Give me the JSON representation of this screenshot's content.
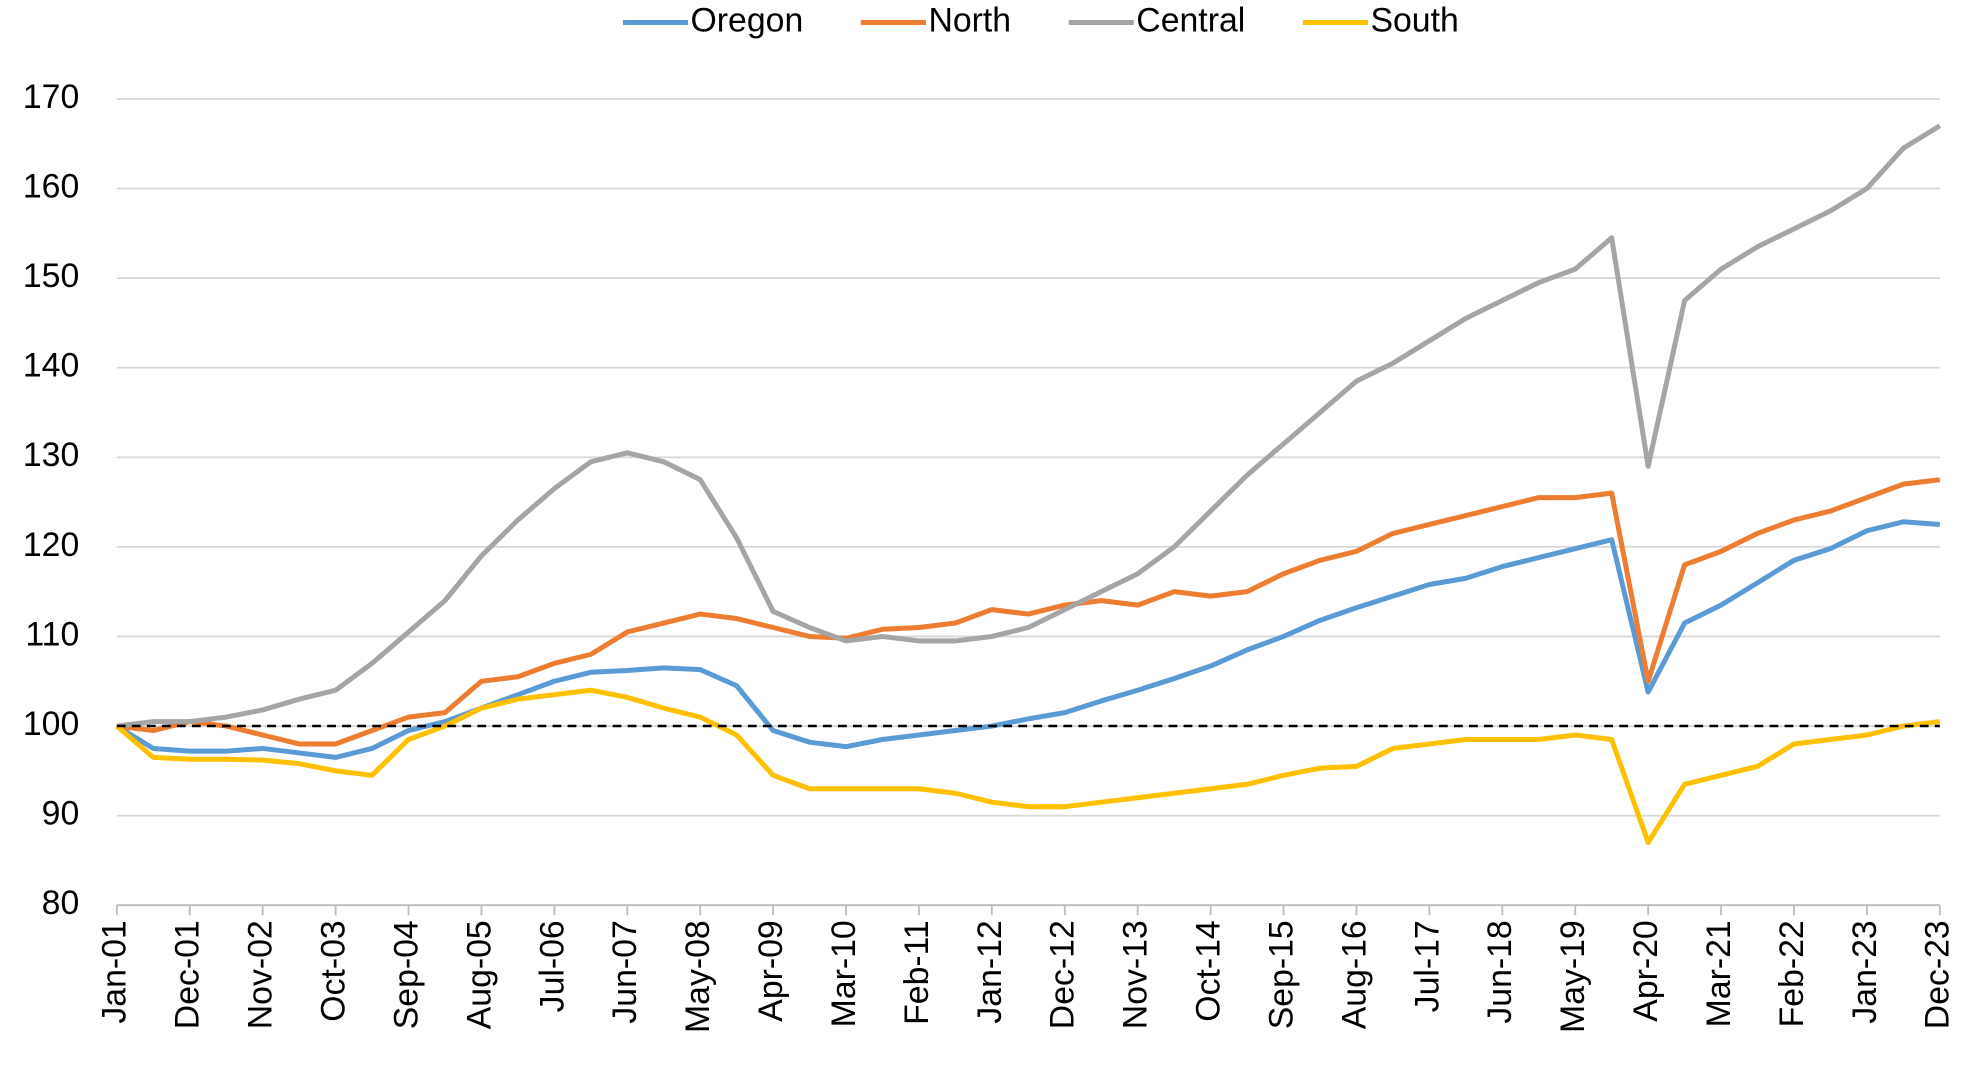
{
  "chart_data": {
    "type": "line",
    "categories": [
      "Jan-01",
      null,
      "Dec-01",
      null,
      "Nov-02",
      null,
      "Oct-03",
      null,
      "Sep-04",
      null,
      "Aug-05",
      null,
      "Jul-06",
      null,
      "Jun-07",
      null,
      "May-08",
      null,
      "Apr-09",
      null,
      "Mar-10",
      null,
      "Feb-11",
      null,
      "Jan-12",
      null,
      "Dec-12",
      null,
      "Nov-13",
      null,
      "Oct-14",
      null,
      "Sep-15",
      null,
      "Aug-16",
      null,
      "Jul-17",
      null,
      "Jun-18",
      null,
      "May-19",
      null,
      "Apr-20",
      null,
      "Mar-21",
      null,
      "Feb-22",
      null,
      "Jan-23",
      null,
      "Dec-23"
    ],
    "series": [
      {
        "name": "Oregon",
        "color": "#5b9bd5",
        "values": [
          100,
          97.5,
          97.2,
          97.2,
          97.5,
          97,
          96.5,
          97.5,
          99.5,
          100.5,
          102,
          103.5,
          105,
          106,
          106.2,
          106.5,
          106.3,
          104.5,
          99.5,
          98.2,
          97.7,
          98.5,
          99,
          99.5,
          100,
          100.8,
          101.5,
          102.8,
          104,
          105.3,
          106.7,
          108.5,
          110,
          111.8,
          113.2,
          114.5,
          115.8,
          116.5,
          117.8,
          118.8,
          119.8,
          120.8,
          103.8,
          111.5,
          113.5,
          116,
          118.5,
          119.8,
          121.8,
          122.8,
          122.5
        ]
      },
      {
        "name": "North",
        "color": "#ed7d31",
        "values": [
          100,
          99.5,
          100.5,
          100,
          99,
          98,
          98,
          99.5,
          101,
          101.5,
          105,
          105.5,
          107,
          108,
          110.5,
          111.5,
          112.5,
          112,
          111,
          110,
          109.8,
          110.8,
          111,
          111.5,
          113,
          112.5,
          113.5,
          114,
          113.5,
          115,
          114.5,
          115,
          117,
          118.5,
          119.5,
          121.5,
          122.5,
          123.5,
          124.5,
          125.5,
          125.5,
          126,
          105,
          118,
          119.5,
          121.5,
          123,
          124,
          125.5,
          127,
          127.5
        ]
      },
      {
        "name": "Central",
        "color": "#a5a5a5",
        "values": [
          100,
          100.5,
          100.5,
          101,
          101.8,
          103,
          104,
          107,
          110.5,
          114,
          119,
          123,
          126.5,
          129.5,
          130.5,
          129.5,
          127.5,
          121,
          112.8,
          111,
          109.5,
          110,
          109.5,
          109.5,
          110,
          111,
          113,
          115,
          117,
          120,
          124,
          128,
          131.5,
          135,
          138.5,
          140.5,
          143,
          145.5,
          147.5,
          149.5,
          151,
          154.5,
          129,
          147.5,
          151,
          153.5,
          155.5,
          157.5,
          160,
          164.5,
          167
        ]
      },
      {
        "name": "South",
        "color": "#ffc000",
        "values": [
          100,
          96.5,
          96.3,
          96.3,
          96.2,
          95.8,
          95,
          94.5,
          98.5,
          100,
          102,
          103,
          103.5,
          104,
          103.2,
          102,
          101,
          99,
          94.5,
          93,
          93,
          93,
          93,
          92.5,
          91.5,
          91,
          91,
          91.5,
          92,
          92.5,
          93,
          93.5,
          94.5,
          95.3,
          95.5,
          97.5,
          98,
          98.5,
          98.5,
          98.5,
          99,
          98.5,
          87,
          93.5,
          94.5,
          95.5,
          98,
          98.5,
          99,
          100,
          100.5
        ]
      }
    ],
    "ylim": [
      80,
      170
    ],
    "yticks": [
      80,
      90,
      100,
      110,
      120,
      130,
      140,
      150,
      160,
      170
    ],
    "grid": true,
    "reference_line": 100,
    "legend": "top"
  }
}
